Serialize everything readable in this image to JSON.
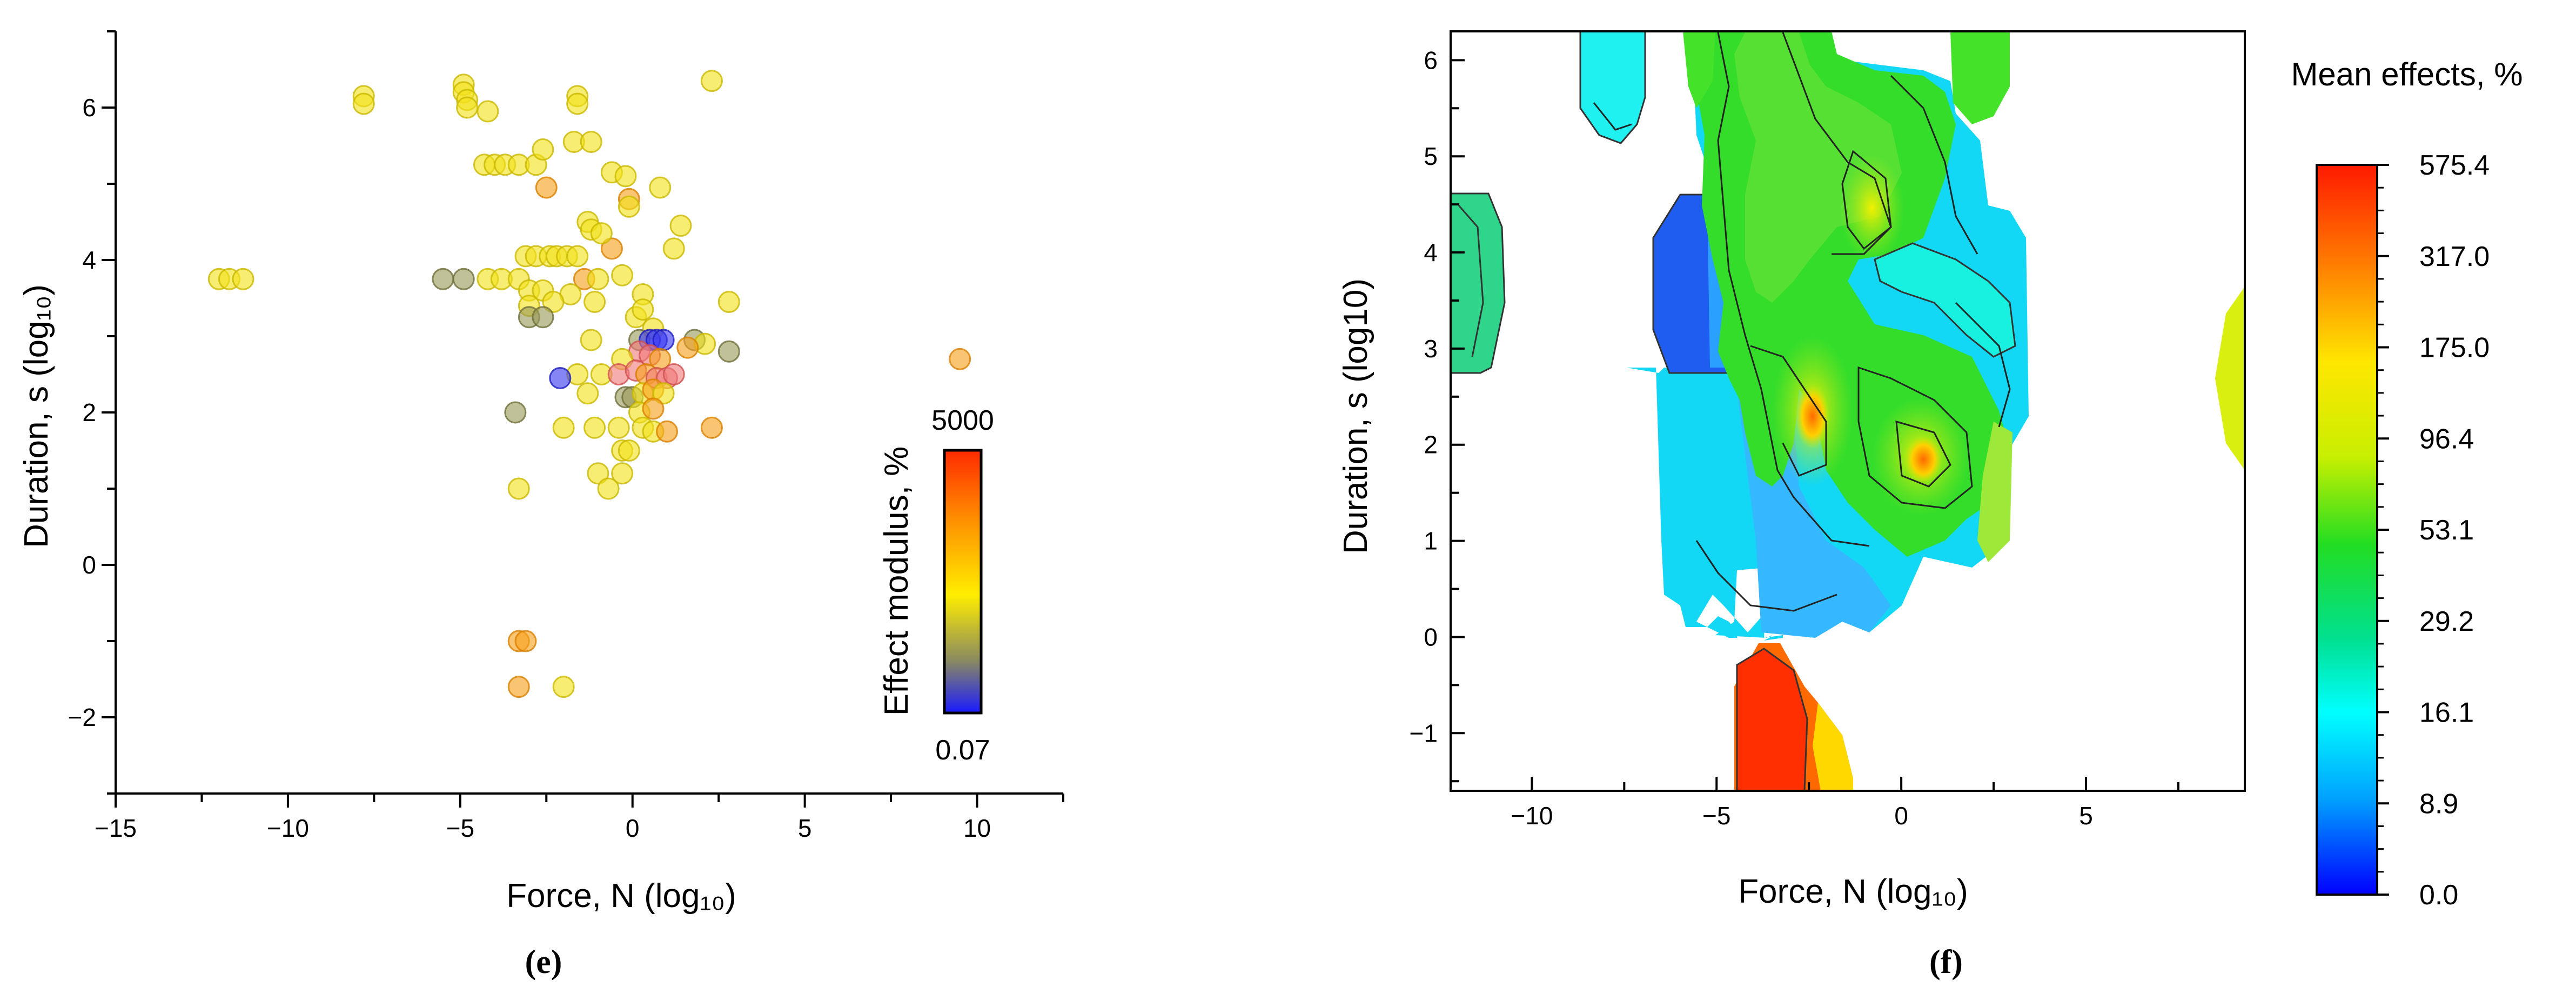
{
  "chart_data": [
    {
      "panel": "(e)",
      "type": "scatter",
      "xlabel": "Force, N (log₁₀)",
      "ylabel": "Duration, s (log₁₀)",
      "xlim": [
        -15,
        12.5
      ],
      "ylim": [
        -3,
        7
      ],
      "xticks": [
        "-15",
        "-10",
        "-5",
        "0",
        "5",
        "10"
      ],
      "xtick_values": [
        -15,
        -10,
        -5,
        0,
        5,
        10
      ],
      "yticks": [
        "-2",
        "0",
        "2",
        "4",
        "6"
      ],
      "ytick_values": [
        -2,
        0,
        2,
        4,
        6
      ],
      "colorbar": {
        "title": "Effect modulus, %",
        "max_label": "5000",
        "min_label": "0.07",
        "stops": [
          "#ff2a00",
          "#ff8a00",
          "#ffee00",
          "#8a8a60",
          "#1a1aff"
        ]
      },
      "points": [
        {
          "x": -12.0,
          "y": 3.75,
          "c": "y"
        },
        {
          "x": -11.7,
          "y": 3.75,
          "c": "y"
        },
        {
          "x": -11.3,
          "y": 3.75,
          "c": "y"
        },
        {
          "x": -7.8,
          "y": 6.15,
          "c": "y"
        },
        {
          "x": -7.8,
          "y": 6.05,
          "c": "y"
        },
        {
          "x": -4.9,
          "y": 6.3,
          "c": "y"
        },
        {
          "x": -4.9,
          "y": 6.2,
          "c": "y"
        },
        {
          "x": -4.8,
          "y": 6.1,
          "c": "y"
        },
        {
          "x": -4.8,
          "y": 6.0,
          "c": "y"
        },
        {
          "x": -4.2,
          "y": 5.95,
          "c": "y"
        },
        {
          "x": -1.6,
          "y": 6.15,
          "c": "y"
        },
        {
          "x": -1.6,
          "y": 6.05,
          "c": "y"
        },
        {
          "x": 2.3,
          "y": 6.35,
          "c": "y"
        },
        {
          "x": -4.3,
          "y": 5.25,
          "c": "y"
        },
        {
          "x": -4.0,
          "y": 5.25,
          "c": "y"
        },
        {
          "x": -3.7,
          "y": 5.25,
          "c": "y"
        },
        {
          "x": -3.3,
          "y": 5.25,
          "c": "y"
        },
        {
          "x": -2.8,
          "y": 5.25,
          "c": "y"
        },
        {
          "x": -2.6,
          "y": 5.45,
          "c": "y"
        },
        {
          "x": -1.7,
          "y": 5.55,
          "c": "y"
        },
        {
          "x": -1.2,
          "y": 5.55,
          "c": "y"
        },
        {
          "x": -0.6,
          "y": 5.15,
          "c": "y"
        },
        {
          "x": -0.2,
          "y": 5.1,
          "c": "y"
        },
        {
          "x": 0.8,
          "y": 4.95,
          "c": "y"
        },
        {
          "x": -2.5,
          "y": 4.95,
          "c": "o"
        },
        {
          "x": -0.1,
          "y": 4.8,
          "c": "o"
        },
        {
          "x": -0.1,
          "y": 4.7,
          "c": "y"
        },
        {
          "x": -1.3,
          "y": 4.5,
          "c": "y"
        },
        {
          "x": -1.2,
          "y": 4.4,
          "c": "y"
        },
        {
          "x": 1.4,
          "y": 4.45,
          "c": "y"
        },
        {
          "x": -0.6,
          "y": 4.15,
          "c": "o"
        },
        {
          "x": -0.9,
          "y": 4.35,
          "c": "y"
        },
        {
          "x": 1.2,
          "y": 4.15,
          "c": "y"
        },
        {
          "x": -5.5,
          "y": 3.75,
          "c": "g"
        },
        {
          "x": -4.9,
          "y": 3.75,
          "c": "g"
        },
        {
          "x": -4.2,
          "y": 3.75,
          "c": "y"
        },
        {
          "x": -3.8,
          "y": 3.75,
          "c": "y"
        },
        {
          "x": -3.3,
          "y": 3.75,
          "c": "y"
        },
        {
          "x": -3.1,
          "y": 4.05,
          "c": "y"
        },
        {
          "x": -2.8,
          "y": 4.05,
          "c": "y"
        },
        {
          "x": -2.4,
          "y": 4.05,
          "c": "y"
        },
        {
          "x": -2.2,
          "y": 4.05,
          "c": "y"
        },
        {
          "x": -1.9,
          "y": 4.05,
          "c": "y"
        },
        {
          "x": -1.6,
          "y": 4.05,
          "c": "y"
        },
        {
          "x": -1.4,
          "y": 3.75,
          "c": "o"
        },
        {
          "x": -1.0,
          "y": 3.75,
          "c": "y"
        },
        {
          "x": -0.3,
          "y": 3.8,
          "c": "y"
        },
        {
          "x": -3.0,
          "y": 3.6,
          "c": "y"
        },
        {
          "x": -2.6,
          "y": 3.6,
          "c": "y"
        },
        {
          "x": -1.8,
          "y": 3.55,
          "c": "y"
        },
        {
          "x": -3.0,
          "y": 3.4,
          "c": "y"
        },
        {
          "x": -2.3,
          "y": 3.45,
          "c": "y"
        },
        {
          "x": -1.1,
          "y": 3.45,
          "c": "y"
        },
        {
          "x": 0.3,
          "y": 3.55,
          "c": "y"
        },
        {
          "x": -3.0,
          "y": 3.25,
          "c": "g"
        },
        {
          "x": -2.6,
          "y": 3.25,
          "c": "g"
        },
        {
          "x": 0.1,
          "y": 3.25,
          "c": "y"
        },
        {
          "x": 0.3,
          "y": 3.35,
          "c": "y"
        },
        {
          "x": 0.6,
          "y": 3.1,
          "c": "y"
        },
        {
          "x": 2.8,
          "y": 3.45,
          "c": "y"
        },
        {
          "x": -1.2,
          "y": 2.95,
          "c": "y"
        },
        {
          "x": 0.2,
          "y": 2.95,
          "c": "g"
        },
        {
          "x": 0.5,
          "y": 2.95,
          "c": "b"
        },
        {
          "x": 0.7,
          "y": 2.95,
          "c": "b"
        },
        {
          "x": 0.9,
          "y": 2.95,
          "c": "b"
        },
        {
          "x": 1.8,
          "y": 2.95,
          "c": "g"
        },
        {
          "x": 2.1,
          "y": 2.9,
          "c": "y"
        },
        {
          "x": 1.6,
          "y": 2.85,
          "c": "o"
        },
        {
          "x": 2.8,
          "y": 2.8,
          "c": "g"
        },
        {
          "x": 0.2,
          "y": 2.8,
          "c": "r"
        },
        {
          "x": 0.5,
          "y": 2.75,
          "c": "r"
        },
        {
          "x": 0.8,
          "y": 2.7,
          "c": "o"
        },
        {
          "x": -0.3,
          "y": 2.7,
          "c": "y"
        },
        {
          "x": -0.9,
          "y": 2.5,
          "c": "y"
        },
        {
          "x": -0.4,
          "y": 2.5,
          "c": "r"
        },
        {
          "x": 0.1,
          "y": 2.55,
          "c": "r"
        },
        {
          "x": 0.4,
          "y": 2.5,
          "c": "o"
        },
        {
          "x": 0.7,
          "y": 2.45,
          "c": "r"
        },
        {
          "x": 1.0,
          "y": 2.45,
          "c": "r"
        },
        {
          "x": 1.2,
          "y": 2.5,
          "c": "r"
        },
        {
          "x": -1.6,
          "y": 2.5,
          "c": "y"
        },
        {
          "x": -2.1,
          "y": 2.45,
          "c": "b"
        },
        {
          "x": -1.3,
          "y": 2.25,
          "c": "y"
        },
        {
          "x": -0.2,
          "y": 2.2,
          "c": "g"
        },
        {
          "x": 0.0,
          "y": 2.2,
          "c": "g"
        },
        {
          "x": 0.3,
          "y": 2.25,
          "c": "y"
        },
        {
          "x": 0.6,
          "y": 2.3,
          "c": "o"
        },
        {
          "x": 0.9,
          "y": 2.25,
          "c": "y"
        },
        {
          "x": 0.2,
          "y": 2.0,
          "c": "y"
        },
        {
          "x": 0.6,
          "y": 2.05,
          "c": "o"
        },
        {
          "x": -3.4,
          "y": 2.0,
          "c": "g"
        },
        {
          "x": -2.0,
          "y": 1.8,
          "c": "y"
        },
        {
          "x": -1.1,
          "y": 1.8,
          "c": "y"
        },
        {
          "x": -0.4,
          "y": 1.8,
          "c": "y"
        },
        {
          "x": 0.3,
          "y": 1.8,
          "c": "y"
        },
        {
          "x": 0.6,
          "y": 1.75,
          "c": "y"
        },
        {
          "x": 1.0,
          "y": 1.75,
          "c": "o"
        },
        {
          "x": 2.3,
          "y": 1.8,
          "c": "o"
        },
        {
          "x": -0.3,
          "y": 1.5,
          "c": "y"
        },
        {
          "x": -0.1,
          "y": 1.5,
          "c": "y"
        },
        {
          "x": -1.0,
          "y": 1.2,
          "c": "y"
        },
        {
          "x": -0.3,
          "y": 1.2,
          "c": "y"
        },
        {
          "x": -0.7,
          "y": 1.0,
          "c": "y"
        },
        {
          "x": -3.3,
          "y": 1.0,
          "c": "y"
        },
        {
          "x": 9.5,
          "y": 2.7,
          "c": "o"
        },
        {
          "x": -3.3,
          "y": -1.0,
          "c": "o"
        },
        {
          "x": -3.1,
          "y": -1.0,
          "c": "o"
        },
        {
          "x": -3.3,
          "y": -1.6,
          "c": "o"
        },
        {
          "x": -2.0,
          "y": -1.6,
          "c": "y"
        }
      ]
    },
    {
      "panel": "(f)",
      "type": "heatmap",
      "xlabel": "Force, N (log₁₀)",
      "ylabel": "Duration, s (log10)",
      "xlim": [
        -12.2,
        9.3
      ],
      "ylim": [
        -1.6,
        6.3
      ],
      "xticks": [
        "-10",
        "-5",
        "0",
        "5"
      ],
      "xtick_values": [
        -10,
        -5,
        0,
        5
      ],
      "yticks": [
        "-1",
        "0",
        "1",
        "2",
        "3",
        "4",
        "5",
        "6"
      ],
      "ytick_values": [
        -1,
        0,
        1,
        2,
        3,
        4,
        5,
        6
      ],
      "colorbar": {
        "title": "Mean effects, %",
        "labels": [
          "575.4",
          "317.0",
          "175.0",
          "96.4",
          "53.1",
          "29.2",
          "16.1",
          "8.9",
          "0.0"
        ],
        "stops": [
          "#ff1a00",
          "#ff8000",
          "#ffe600",
          "#c8ef00",
          "#22dd22",
          "#00e090",
          "#00ffff",
          "#00a0ff",
          "#0000ff"
        ]
      }
    }
  ]
}
